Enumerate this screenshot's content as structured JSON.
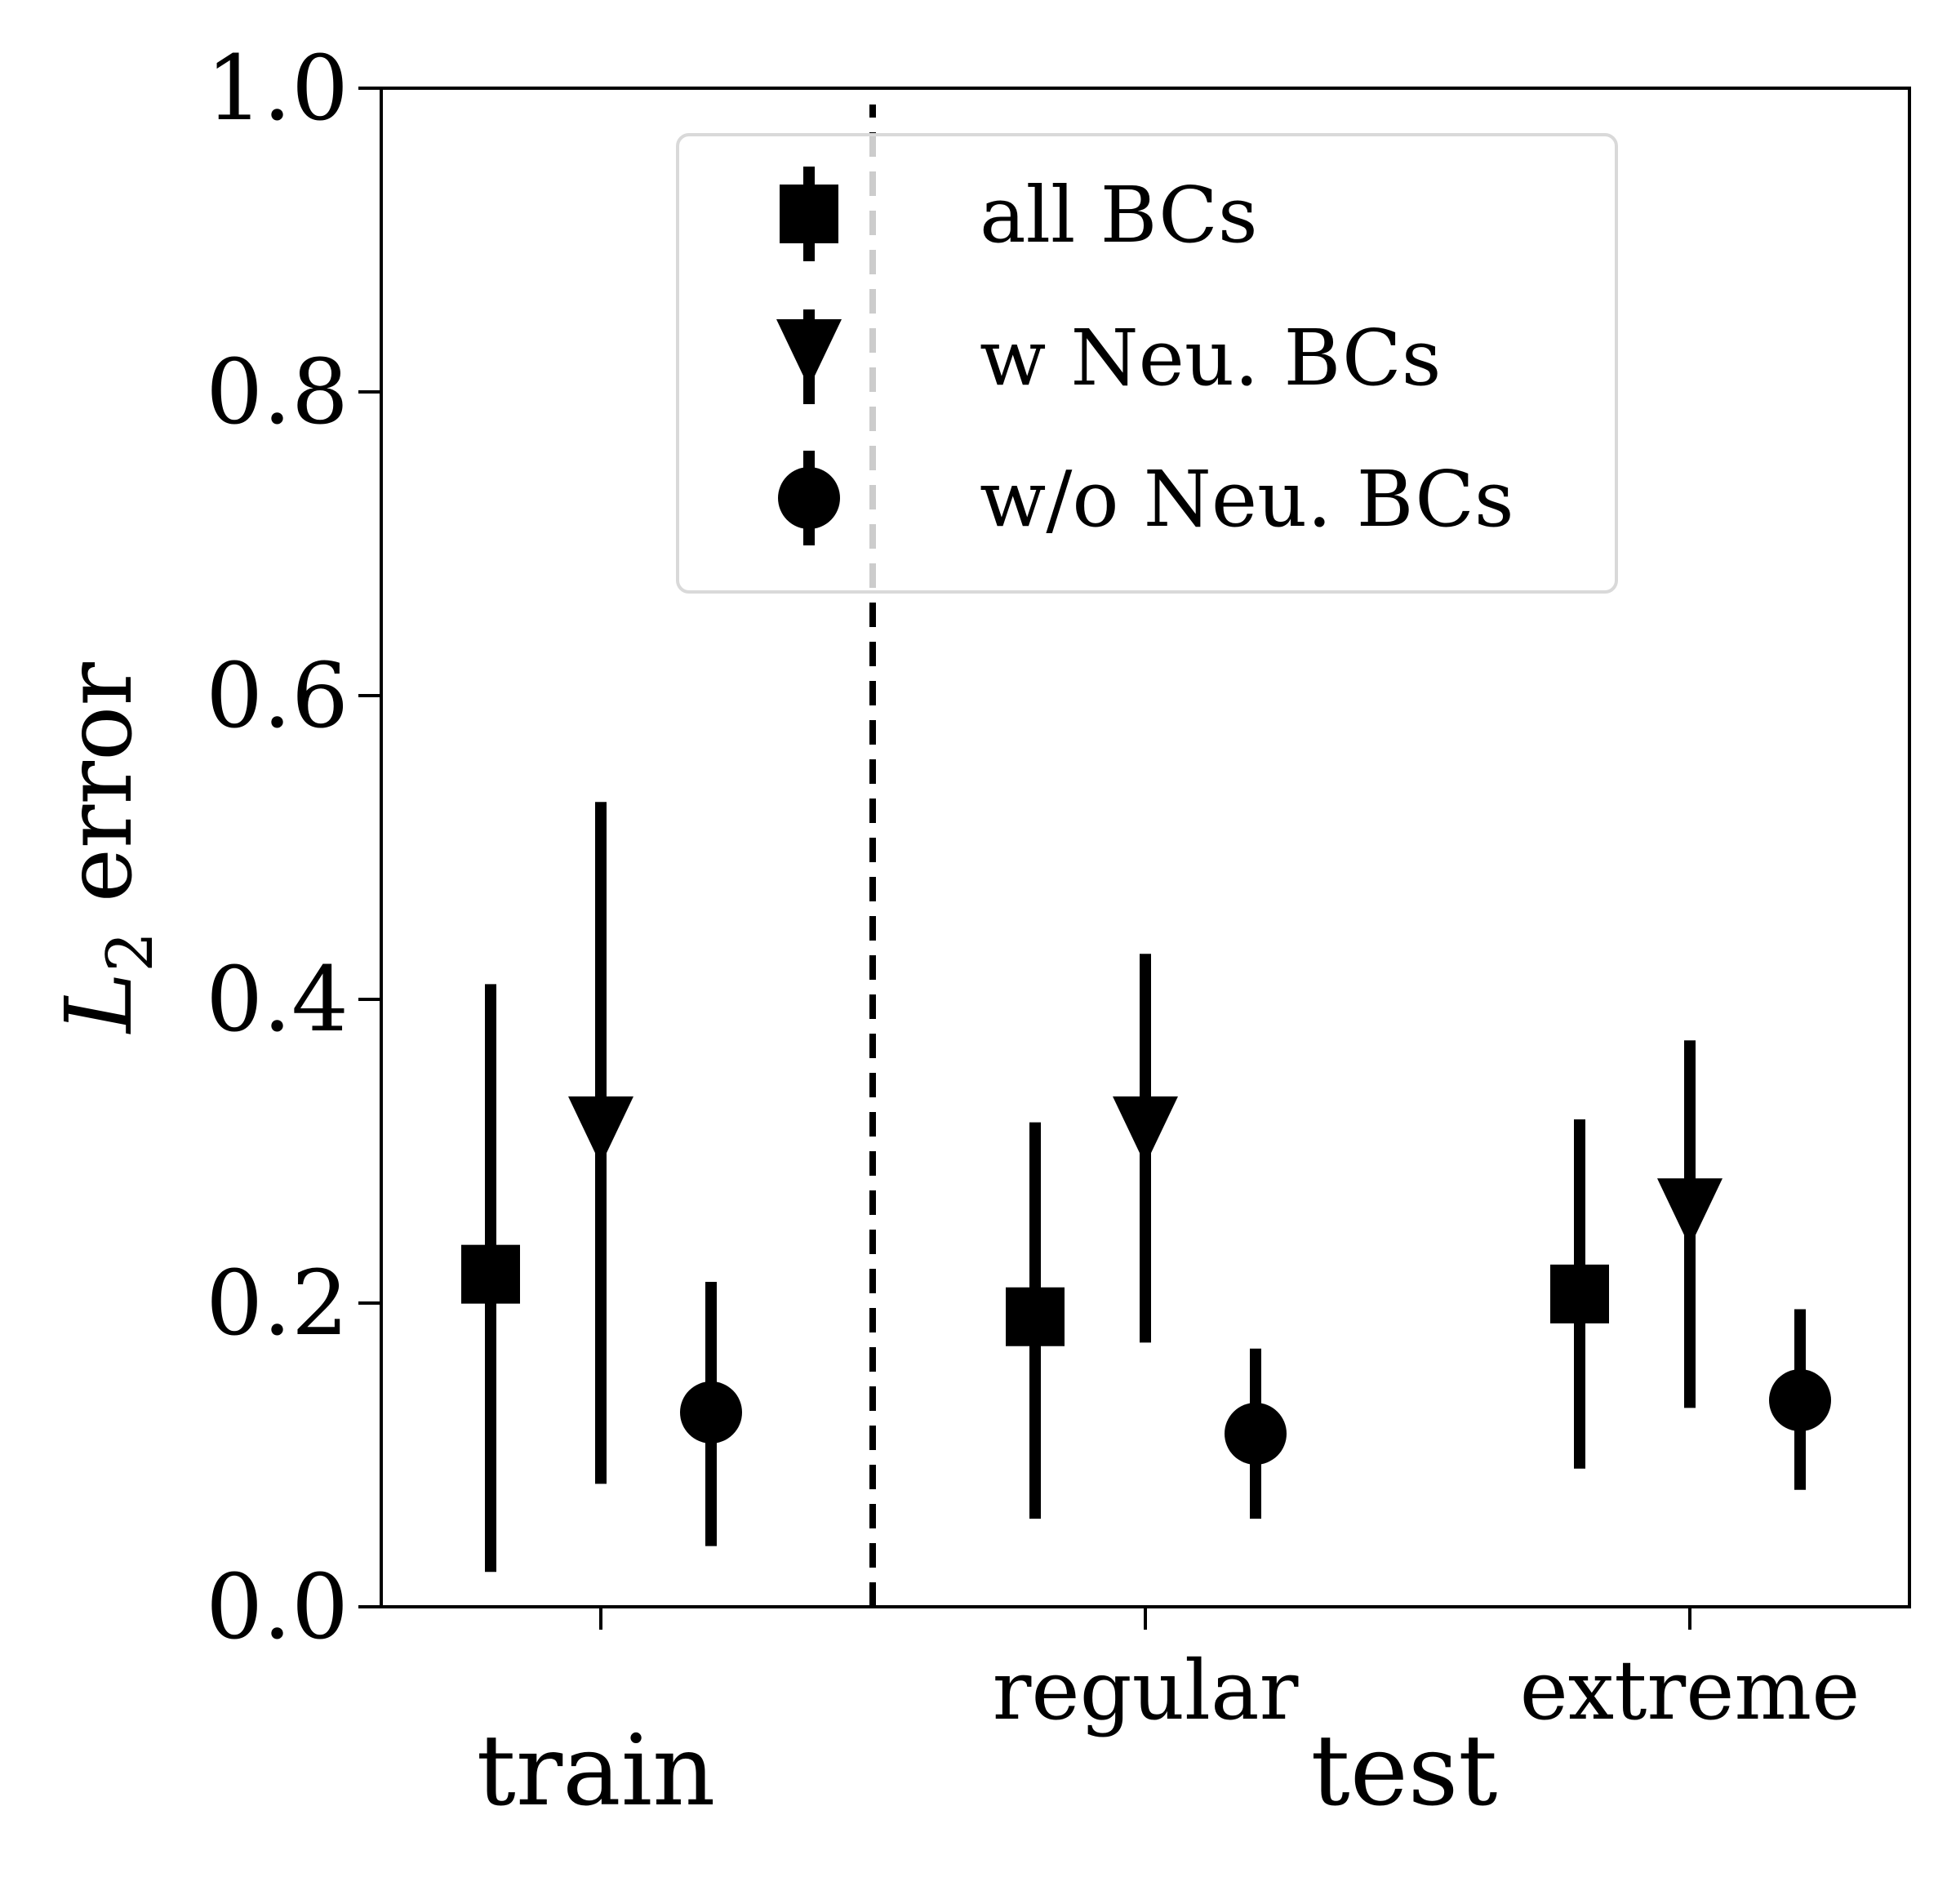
{
  "chart_data": {
    "type": "scatter",
    "subtype": "errorbar",
    "title": "",
    "ylabel_main": "L",
    "ylabel_sub": "2",
    "ylabel_rest": " error",
    "xlabel_groups": [
      "train",
      "test"
    ],
    "ylim": [
      0.0,
      1.0
    ],
    "yticks": [
      "0.0",
      "0.2",
      "0.4",
      "0.6",
      "0.8",
      "1.0"
    ],
    "yticks_values": [
      0.0,
      0.2,
      0.4,
      0.6,
      0.8,
      1.0
    ],
    "categories": [
      "",
      "regular",
      "extreme"
    ],
    "grid": false,
    "legend_placement": "top-center",
    "divider": "dashed vertical line between train and test",
    "series": [
      {
        "name": "all BCs",
        "marker": "square",
        "values": [
          0.219,
          0.191,
          0.206
        ],
        "err_low": [
          0.023,
          0.058,
          0.091
        ],
        "err_high": [
          0.41,
          0.319,
          0.321
        ]
      },
      {
        "name": "w Neu. BCs",
        "marker": "triangle-down",
        "values": [
          0.306,
          0.306,
          0.252
        ],
        "err_low": [
          0.081,
          0.174,
          0.131
        ],
        "err_high": [
          0.53,
          0.43,
          0.373
        ]
      },
      {
        "name": "w/o Neu. BCs",
        "marker": "circle",
        "values": [
          0.128,
          0.114,
          0.136
        ],
        "err_low": [
          0.04,
          0.058,
          0.077
        ],
        "err_high": [
          0.214,
          0.17,
          0.196
        ]
      }
    ]
  },
  "colors": {
    "marker": "#000000",
    "divider": "#000000",
    "legend_border": "#d9d9d9"
  }
}
